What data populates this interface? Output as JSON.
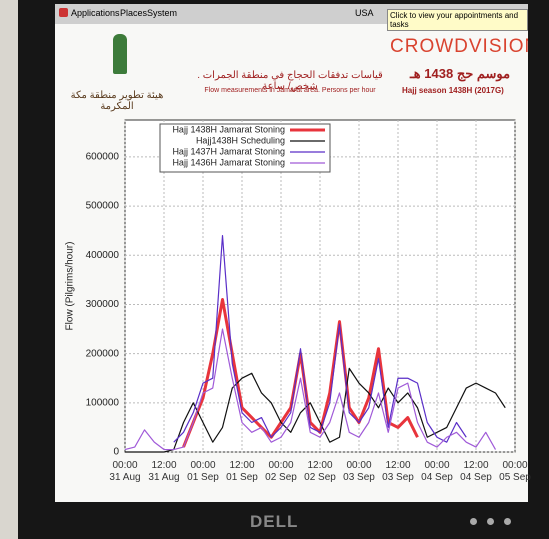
{
  "topbar": {
    "menus": [
      "Applications",
      "Places",
      "System"
    ],
    "keyboard": "USA",
    "tooltip": "Click to view your appointments and tasks"
  },
  "header": {
    "brand": "CROWDVISION",
    "season_ar": "موسم حج 1438 هـ",
    "season_en": "Hajj  season 1438H (2017G)",
    "title_ar": "قياسات تدفقات الحجاج في منطقة الجمرات . شخص/ ساعة",
    "title_en": "Flow measurements in Jamarat area. Persons per hour",
    "org_ar": "هيئة تطوير منطقة مكة المكرمة"
  },
  "monitor": {
    "logo": "DELL"
  },
  "chart_data": {
    "type": "line",
    "ylabel": "Flow (Pilgrims/hour)",
    "x": [
      0,
      3,
      6,
      9,
      12,
      15,
      18,
      21,
      24,
      27,
      30,
      33,
      36,
      39,
      42,
      45,
      48,
      51,
      54,
      57,
      60,
      63,
      66,
      69,
      72,
      75,
      78,
      81,
      84,
      87,
      90,
      93,
      96,
      99,
      102,
      105,
      108,
      111,
      114,
      117,
      120
    ],
    "xlim": [
      0,
      120
    ],
    "xticks": [
      {
        "value": 0,
        "label": "00:00\n31 Aug"
      },
      {
        "value": 12,
        "label": "12:00\n31 Aug"
      },
      {
        "value": 24,
        "label": "00:00\n01 Sep"
      },
      {
        "value": 36,
        "label": "12:00\n01 Sep"
      },
      {
        "value": 48,
        "label": "00:00\n02 Sep"
      },
      {
        "value": 60,
        "label": "12:00\n02 Sep"
      },
      {
        "value": 72,
        "label": "00:00\n03 Sep"
      },
      {
        "value": 84,
        "label": "12:00\n03 Sep"
      },
      {
        "value": 96,
        "label": "00:00\n04 Sep"
      },
      {
        "value": 108,
        "label": "12:00\n04 Sep"
      },
      {
        "value": 120,
        "label": "00:00\n05 Sep"
      }
    ],
    "ylim": [
      0,
      675000
    ],
    "yticks": [
      0,
      100000,
      200000,
      300000,
      400000,
      500000,
      600000
    ],
    "grid": true,
    "legend": "upper left",
    "series": [
      {
        "name": "Hajj 1438H Jamarat Stoning",
        "color": "#e8343c",
        "values": [
          null,
          null,
          null,
          null,
          null,
          null,
          10000,
          60000,
          110000,
          200000,
          310000,
          200000,
          90000,
          70000,
          50000,
          30000,
          60000,
          90000,
          200000,
          60000,
          40000,
          120000,
          265000,
          90000,
          60000,
          110000,
          210000,
          60000,
          50000,
          70000,
          30000,
          null,
          null,
          null,
          null,
          null,
          null,
          null,
          null,
          null,
          null
        ]
      },
      {
        "name": "Hajj1438H Scheduling",
        "color": "#111111",
        "values": [
          0,
          0,
          0,
          0,
          0,
          5000,
          60000,
          100000,
          60000,
          20000,
          50000,
          130000,
          150000,
          160000,
          120000,
          100000,
          60000,
          40000,
          80000,
          100000,
          60000,
          20000,
          30000,
          170000,
          140000,
          120000,
          90000,
          130000,
          100000,
          120000,
          90000,
          30000,
          40000,
          50000,
          90000,
          130000,
          140000,
          130000,
          120000,
          90000,
          null
        ]
      },
      {
        "name": "Hajj 1437H Jamarat Stoning",
        "color": "#5a2fc8",
        "values": [
          null,
          null,
          null,
          null,
          null,
          20000,
          40000,
          80000,
          140000,
          150000,
          440000,
          180000,
          80000,
          60000,
          70000,
          30000,
          50000,
          80000,
          210000,
          50000,
          40000,
          100000,
          260000,
          80000,
          60000,
          90000,
          190000,
          50000,
          150000,
          150000,
          140000,
          60000,
          30000,
          20000,
          60000,
          30000,
          null,
          null,
          null,
          null,
          null
        ]
      },
      {
        "name": "Hajj 1436H Jamarat Stoning",
        "color": "#a05ad8",
        "values": [
          5000,
          10000,
          45000,
          20000,
          5000,
          5000,
          10000,
          60000,
          120000,
          130000,
          250000,
          150000,
          60000,
          40000,
          50000,
          20000,
          30000,
          60000,
          150000,
          40000,
          30000,
          60000,
          120000,
          40000,
          30000,
          60000,
          120000,
          40000,
          130000,
          140000,
          60000,
          20000,
          10000,
          30000,
          40000,
          20000,
          10000,
          40000,
          5000,
          null,
          null
        ]
      }
    ]
  }
}
